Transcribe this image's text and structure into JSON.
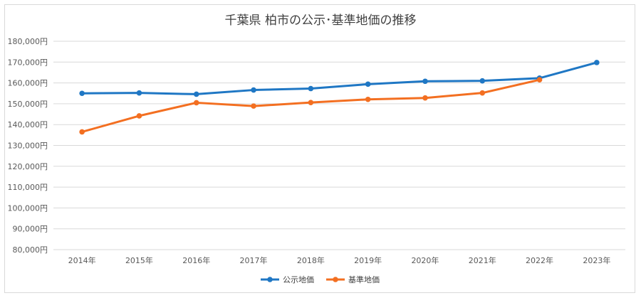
{
  "chart_data": {
    "type": "line",
    "title": "千葉県 柏市の公示･基準地価の推移",
    "categories": [
      "2014年",
      "2015年",
      "2016年",
      "2017年",
      "2018年",
      "2019年",
      "2020年",
      "2021年",
      "2022年",
      "2023年"
    ],
    "ylim": [
      80000,
      180000
    ],
    "yticks": [
      80000,
      90000,
      100000,
      110000,
      120000,
      130000,
      140000,
      150000,
      160000,
      170000,
      180000
    ],
    "ytick_labels": [
      "80,000円",
      "90,000円",
      "100,000円",
      "110,000円",
      "120,000円",
      "130,000円",
      "140,000円",
      "150,000円",
      "160,000円",
      "170,000円",
      "180,000円"
    ],
    "grid": true,
    "legend_position": "bottom",
    "series": [
      {
        "name": "公示地価",
        "color": "#1f77c4",
        "values": [
          155000,
          155200,
          154600,
          156600,
          157300,
          159400,
          160800,
          161000,
          162300,
          169800
        ]
      },
      {
        "name": "基準地価",
        "color": "#f36f21",
        "values": [
          136500,
          144200,
          150500,
          148900,
          150600,
          152100,
          152800,
          155200,
          161500,
          null
        ]
      }
    ]
  }
}
